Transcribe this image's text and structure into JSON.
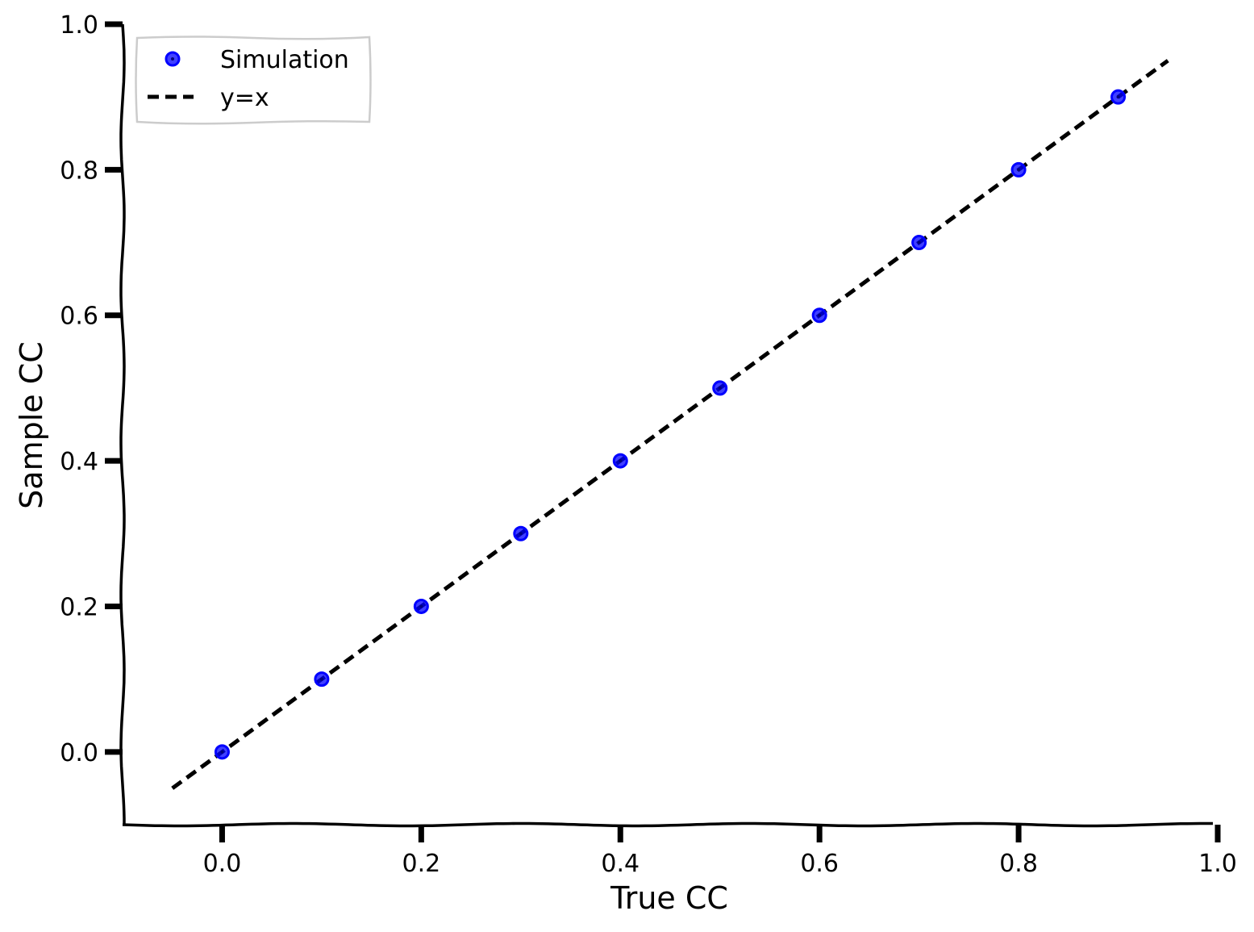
{
  "chart_data": {
    "type": "scatter",
    "title": "",
    "xlabel": "True CC",
    "ylabel": "Sample CC",
    "xlim": [
      -0.1,
      1.0
    ],
    "ylim": [
      -0.1,
      1.0
    ],
    "xticks": [
      "0.0",
      "0.2",
      "0.4",
      "0.6",
      "0.8",
      "1.0"
    ],
    "yticks": [
      "0.0",
      "0.2",
      "0.4",
      "0.6",
      "0.8",
      "1.0"
    ],
    "grid": false,
    "legend_position": "top-left",
    "series": [
      {
        "name": "Simulation",
        "kind": "scatter",
        "color": "#0000ff",
        "x": [
          0.0,
          0.1,
          0.2,
          0.3,
          0.4,
          0.5,
          0.6,
          0.7,
          0.8,
          0.9
        ],
        "y": [
          0.0,
          0.1,
          0.2,
          0.3,
          0.4,
          0.5,
          0.6,
          0.7,
          0.8,
          0.9
        ]
      },
      {
        "name": "y=x",
        "kind": "line",
        "style": "dashed",
        "color": "#000000",
        "x": [
          -0.05,
          0.95
        ],
        "y": [
          -0.05,
          0.95
        ]
      }
    ]
  }
}
